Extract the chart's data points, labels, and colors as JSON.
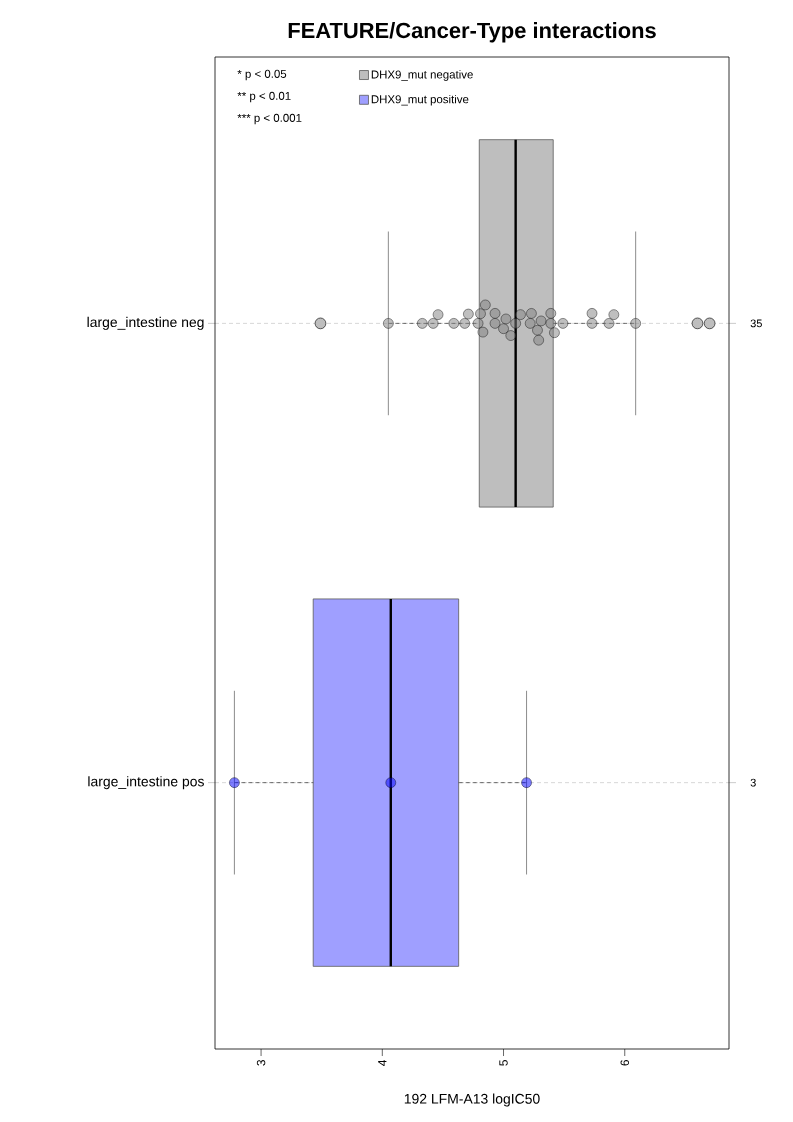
{
  "chart_data": {
    "type": "box",
    "title": "FEATURE/Cancer-Type interactions",
    "xlabel": "192 LFM-A13 logIC50",
    "orientation": "horizontal",
    "categories": [
      "large_intestine neg",
      "large_intestine pos"
    ],
    "xlim": [
      2.62,
      6.86
    ],
    "xticks": [
      3,
      4,
      5,
      6
    ],
    "grid": "y",
    "legend": "top left",
    "marker": "circle",
    "series": [
      {
        "name": "DHX9_mut negative",
        "color": "#bebebe",
        "boxes": [
          {
            "low": 4.05,
            "q1": 4.8,
            "median": 5.1,
            "q3": 5.41,
            "high": 6.09,
            "outliers": [
              3.49,
              6.6,
              6.7
            ]
          },
          null
        ]
      },
      {
        "name": "DHX9_mut positive",
        "color": "#9f9fff",
        "boxes": [
          null,
          {
            "low": 2.78,
            "q1": 3.43,
            "median": 4.07,
            "q3": 4.63,
            "high": 5.19
          }
        ]
      },
      {
        "type": "scatter",
        "color": "#808080",
        "x": [
          "large_intestine neg",
          "large_intestine neg",
          "large_intestine neg",
          "large_intestine neg",
          "large_intestine neg",
          "large_intestine neg",
          "large_intestine neg",
          "large_intestine neg",
          "large_intestine neg",
          "large_intestine neg",
          "large_intestine neg",
          "large_intestine neg",
          "large_intestine neg",
          "large_intestine neg",
          "large_intestine neg",
          "large_intestine neg",
          "large_intestine neg",
          "large_intestine neg",
          "large_intestine neg",
          "large_intestine neg",
          "large_intestine neg",
          "large_intestine neg",
          "large_intestine neg",
          "large_intestine neg",
          "large_intestine neg",
          "large_intestine neg",
          "large_intestine neg",
          "large_intestine neg",
          "large_intestine neg",
          "large_intestine neg",
          "large_intestine neg",
          "large_intestine neg"
        ],
        "values": [
          4.05,
          4.33,
          4.42,
          4.46,
          4.59,
          4.68,
          4.71,
          4.79,
          4.81,
          4.83,
          4.85,
          4.93,
          4.93,
          5.0,
          5.02,
          5.06,
          5.1,
          5.14,
          5.22,
          5.23,
          5.28,
          5.29,
          5.31,
          5.39,
          5.39,
          5.42,
          5.49,
          5.73,
          5.73,
          5.87,
          5.91,
          6.09
        ]
      },
      {
        "type": "scatter",
        "color": "#0000ff",
        "x": [
          "large_intestine pos",
          "large_intestine pos",
          "large_intestine pos"
        ],
        "values": [
          2.78,
          4.07,
          5.19
        ]
      }
    ],
    "annotations": [
      "* p < 0.05",
      "** p < 0.01",
      "*** p < 0.001",
      "35",
      "3"
    ]
  }
}
